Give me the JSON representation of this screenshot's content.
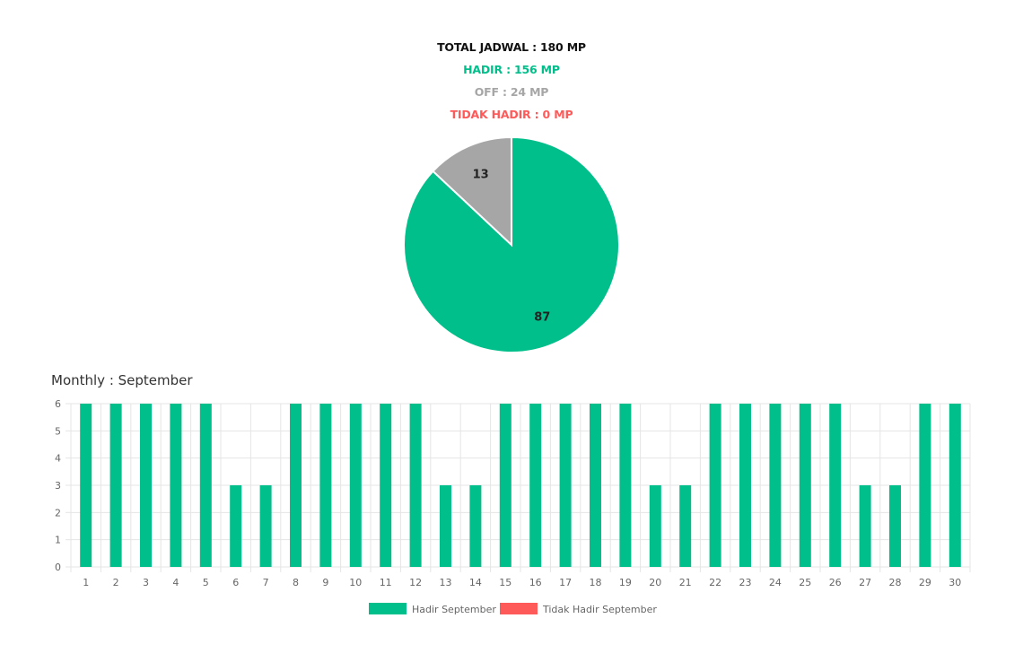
{
  "summary": {
    "total": "TOTAL JADWAL : 180 MP",
    "hadir": "HADIR : 156 MP",
    "off": "OFF : 24 MP",
    "tidak_hadir": "TIDAK HADIR : 0 MP"
  },
  "colors": {
    "total": "#111111",
    "hadir": "#00bf8a",
    "off": "#a6a6a6",
    "tidak_hadir": "#ff5a5a",
    "grid": "#e5e5e5",
    "tick": "#666666"
  },
  "monthly_title": "Monthly : September",
  "chart_data": [
    {
      "type": "pie",
      "slices": [
        {
          "label": "87",
          "value": 87,
          "color": "#00bf8a"
        },
        {
          "label": "13",
          "value": 13,
          "color": "#a6a6a6"
        }
      ]
    },
    {
      "type": "bar",
      "categories": [
        "1",
        "2",
        "3",
        "4",
        "5",
        "6",
        "7",
        "8",
        "9",
        "10",
        "11",
        "12",
        "13",
        "14",
        "15",
        "16",
        "17",
        "18",
        "19",
        "20",
        "21",
        "22",
        "23",
        "24",
        "25",
        "26",
        "27",
        "28",
        "29",
        "30"
      ],
      "series": [
        {
          "name": "Hadir September",
          "color": "#00bf8a",
          "values": [
            6,
            6,
            6,
            6,
            6,
            3,
            3,
            6,
            6,
            6,
            6,
            6,
            3,
            3,
            6,
            6,
            6,
            6,
            6,
            3,
            3,
            6,
            6,
            6,
            6,
            6,
            3,
            3,
            6,
            6
          ]
        },
        {
          "name": "Tidak Hadir September",
          "color": "#ff5a5a",
          "values": [
            0,
            0,
            0,
            0,
            0,
            0,
            0,
            0,
            0,
            0,
            0,
            0,
            0,
            0,
            0,
            0,
            0,
            0,
            0,
            0,
            0,
            0,
            0,
            0,
            0,
            0,
            0,
            0,
            0,
            0
          ]
        }
      ],
      "yticks": [
        "0",
        "1",
        "2",
        "3",
        "4",
        "5",
        "6"
      ],
      "ylim": [
        0,
        6
      ],
      "grid": true,
      "legend": "bottom"
    }
  ]
}
